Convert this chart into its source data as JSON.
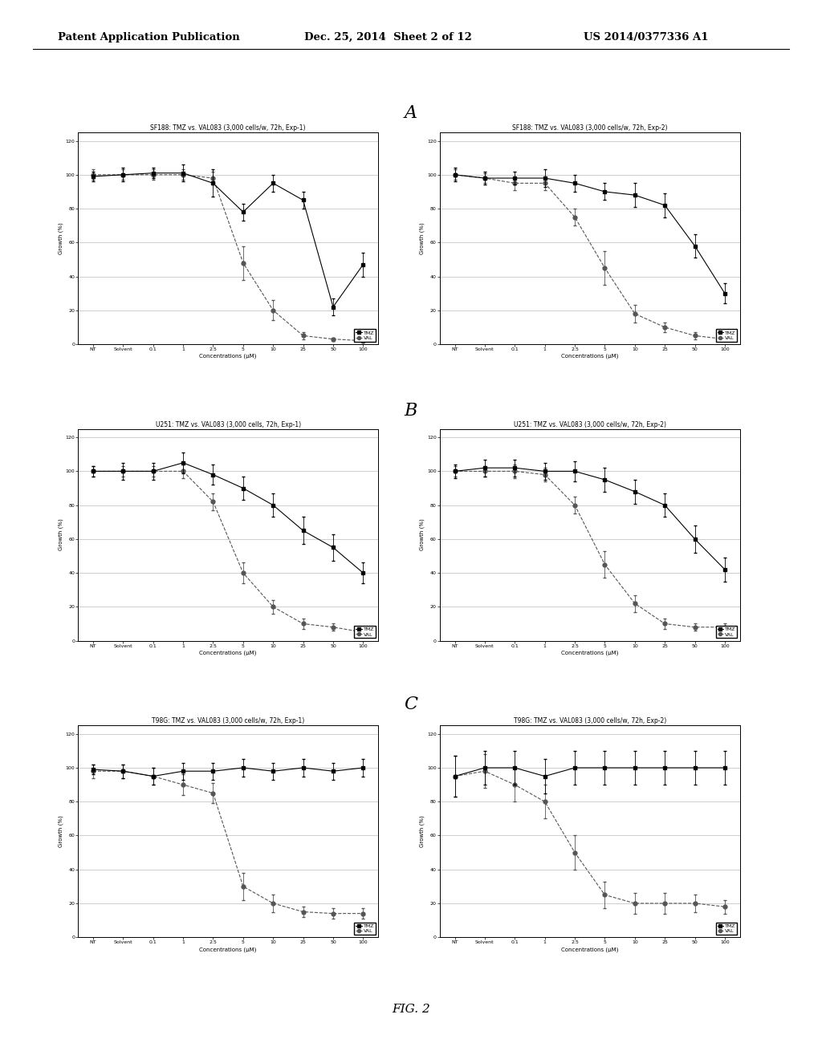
{
  "page_header_left": "Patent Application Publication",
  "page_header_center": "Dec. 25, 2014  Sheet 2 of 12",
  "page_header_right": "US 2014/0377336 A1",
  "figure_label": "FIG. 2",
  "section_labels": [
    "A",
    "B",
    "C"
  ],
  "x_tick_labels": [
    "NT",
    "Solvent",
    "0.1",
    "1",
    "2.5",
    "5",
    "10",
    "25",
    "50",
    "100"
  ],
  "x_label": "Concentrations (µM)",
  "y_label": "Growth (%)",
  "y_ticks": [
    0,
    20,
    40,
    60,
    80,
    100,
    120
  ],
  "y_lim": [
    0,
    125
  ],
  "legend_tmz": "TMZ",
  "legend_val": "VAL",
  "charts": [
    {
      "title": "SF188: TMZ vs. VAL083 (3,000 cells/w, 72h, Exp-1)",
      "tmz_y": [
        99,
        100,
        101,
        101,
        95,
        78,
        95,
        85,
        22,
        47
      ],
      "tmz_err": [
        3,
        4,
        3,
        5,
        8,
        5,
        5,
        5,
        5,
        7
      ],
      "val_y": [
        100,
        100,
        100,
        100,
        98,
        48,
        20,
        5,
        3,
        2
      ],
      "val_err": [
        3,
        3,
        3,
        3,
        4,
        10,
        6,
        2,
        1,
        1
      ]
    },
    {
      "title": "SF188: TMZ vs. VAL083 (3,000 cells/w, 72h, Exp-2)",
      "tmz_y": [
        100,
        98,
        98,
        98,
        95,
        90,
        88,
        82,
        58,
        30
      ],
      "tmz_err": [
        4,
        4,
        4,
        5,
        5,
        5,
        7,
        7,
        7,
        6
      ],
      "val_y": [
        100,
        98,
        95,
        95,
        75,
        45,
        18,
        10,
        5,
        3
      ],
      "val_err": [
        3,
        3,
        4,
        4,
        5,
        10,
        5,
        3,
        2,
        1
      ]
    },
    {
      "title": "U251: TMZ vs. VAL083 (3,000 cells, 72h, Exp-1)",
      "tmz_y": [
        100,
        100,
        100,
        105,
        98,
        90,
        80,
        65,
        55,
        40
      ],
      "tmz_err": [
        3,
        5,
        5,
        6,
        6,
        7,
        7,
        8,
        8,
        6
      ],
      "val_y": [
        100,
        100,
        100,
        100,
        82,
        40,
        20,
        10,
        8,
        5
      ],
      "val_err": [
        3,
        3,
        3,
        4,
        5,
        6,
        4,
        3,
        2,
        2
      ]
    },
    {
      "title": "U251: TMZ vs. VAL083 (3,000 cells/w, 72h, Exp-2)",
      "tmz_y": [
        100,
        102,
        102,
        100,
        100,
        95,
        88,
        80,
        60,
        42
      ],
      "tmz_err": [
        4,
        5,
        5,
        5,
        6,
        7,
        7,
        7,
        8,
        7
      ],
      "val_y": [
        100,
        100,
        100,
        98,
        80,
        45,
        22,
        10,
        8,
        8
      ],
      "val_err": [
        3,
        3,
        4,
        4,
        5,
        8,
        5,
        3,
        2,
        2
      ]
    },
    {
      "title": "T98G: TMZ vs. VAL083 (3,000 cells/w, 72h, Exp-1)",
      "tmz_y": [
        99,
        98,
        95,
        98,
        98,
        100,
        98,
        100,
        98,
        100
      ],
      "tmz_err": [
        3,
        4,
        5,
        5,
        5,
        5,
        5,
        5,
        5,
        5
      ],
      "val_y": [
        98,
        98,
        95,
        90,
        85,
        30,
        20,
        15,
        14,
        14
      ],
      "val_err": [
        4,
        4,
        5,
        6,
        6,
        8,
        5,
        3,
        3,
        3
      ]
    },
    {
      "title": "T98G: TMZ vs. VAL083 (3,000 cells/w, 72h, Exp-2)",
      "tmz_y": [
        95,
        100,
        100,
        95,
        100,
        100,
        100,
        100,
        100,
        100
      ],
      "tmz_err": [
        12,
        10,
        10,
        10,
        10,
        10,
        10,
        10,
        10,
        10
      ],
      "val_y": [
        95,
        98,
        90,
        80,
        50,
        25,
        20,
        20,
        20,
        18
      ],
      "val_err": [
        12,
        10,
        10,
        10,
        10,
        8,
        6,
        6,
        5,
        4
      ]
    }
  ],
  "bg_color": "#ffffff",
  "plot_bg_color": "#ffffff",
  "line_color_tmz": "#000000",
  "line_color_val": "#555555",
  "marker_tmz": "s",
  "marker_val": "o",
  "marker_size": 3.5,
  "line_width": 0.8,
  "font_size_title": 5.5,
  "font_size_axis": 5.0,
  "font_size_tick": 4.5,
  "font_size_header": 9.5,
  "font_size_section": 16
}
